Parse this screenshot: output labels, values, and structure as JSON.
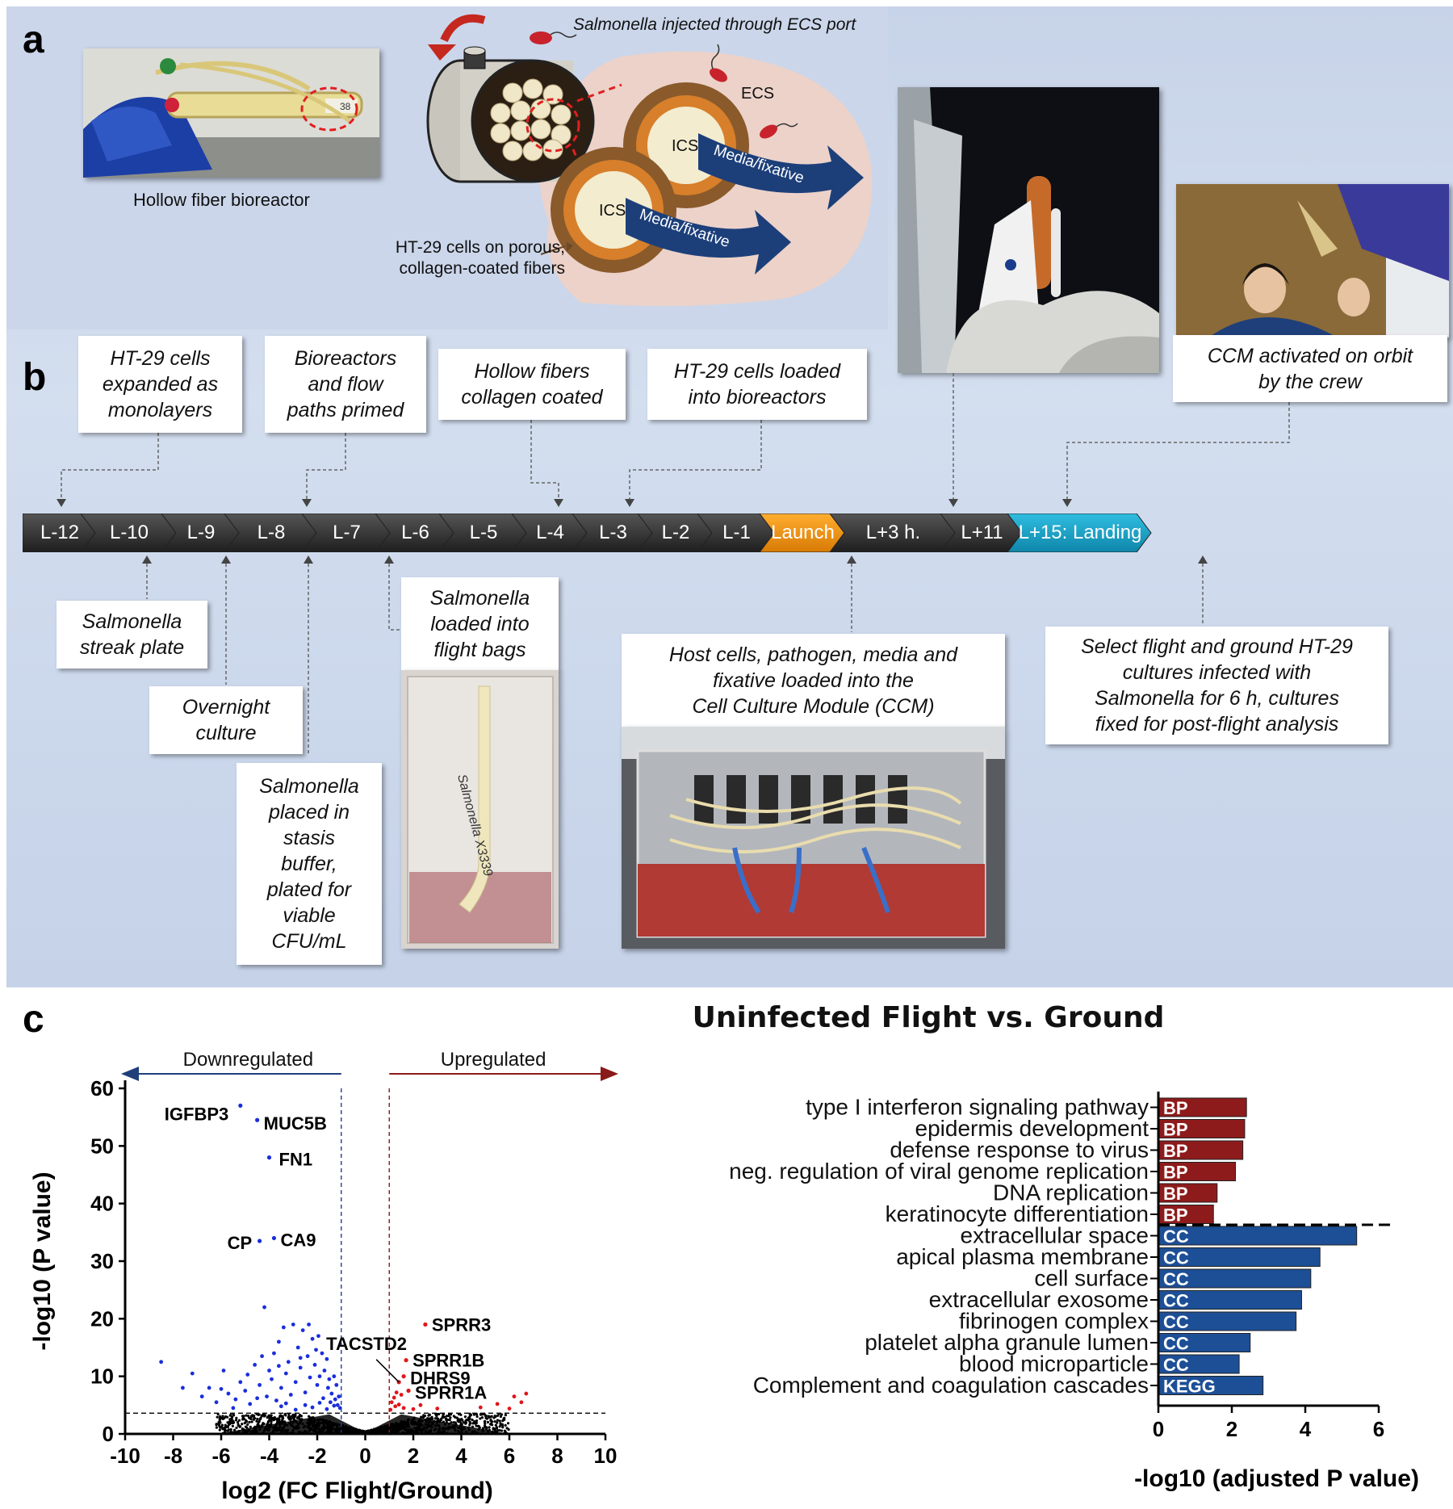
{
  "panels": {
    "a": "a",
    "b": "b",
    "c": "c"
  },
  "panel_a": {
    "bioreactor_label": "Hollow fiber bioreactor",
    "injection_label": "Salmonella injected through ECS port",
    "ecs": "ECS",
    "ics1": "ICS",
    "ics2": "ICS",
    "media1": "Media/fixative",
    "media2": "Media/fixative",
    "cells_label_1": "HT-29 cells on porous,",
    "cells_label_2": "collagen-coated fibers",
    "bioreactor_tag": "38"
  },
  "timeline": {
    "steps": [
      "L-12",
      "L-10",
      "L-9",
      "L-8",
      "L-7",
      "L-6",
      "L-5",
      "L-4",
      "L-3",
      "L-2",
      "L-1",
      "Launch",
      "L+3 h.",
      "L+11",
      "L+15: Landing"
    ],
    "colors": {
      "default": "#3a3a3a",
      "launch": "#f0960e",
      "landing": "#1aa3c8"
    }
  },
  "notes_top": {
    "n1": "HT-29 cells\nexpanded as\nmonolayers",
    "n2": "Bioreactors\nand flow\npaths primed",
    "n3": "Hollow fibers\ncollagen coated",
    "n4": "HT-29 cells loaded\ninto bioreactors",
    "n5": "CCM activated on orbit\nby the crew"
  },
  "notes_bottom": {
    "n1": "Salmonella\nstreak plate",
    "n2": "Overnight\nculture",
    "n3": "Salmonella\nplaced in\nstasis\nbuffer,\nplated for\nviable\nCFU/mL",
    "n4": "Salmonella\nloaded into\nflight bags",
    "n5": "Host cells, pathogen, media and\nfixative loaded into the\nCell Culture Module (CCM)",
    "n6": "Select flight and ground HT-29\ncultures infected with\nSalmonella for 6 h, cultures\nfixed for post-flight analysis"
  },
  "photo_text": {
    "bag_handwriting": "Salmonella X3339"
  },
  "panel_c_title": "Uninfected Flight vs. Ground",
  "chart_data": [
    {
      "type": "scatter",
      "title": "",
      "xlabel": "log2 (FC Flight/Ground)",
      "ylabel": "-log10 (P value)",
      "xlim": [
        -10,
        10
      ],
      "ylim": [
        0,
        60
      ],
      "xticks": [
        -10,
        -8,
        -6,
        -4,
        -2,
        0,
        2,
        4,
        6,
        8,
        10
      ],
      "yticks": [
        0,
        10,
        20,
        30,
        40,
        50,
        60
      ],
      "thresholds": {
        "fc_low": -1,
        "fc_high": 1,
        "p": 3.6
      },
      "direction_labels": {
        "down": "Downregulated",
        "up": "Upregulated"
      },
      "colors": {
        "down": "#1a2edb",
        "up": "#e0161b",
        "ns": "#000000",
        "down_arrow": "#1f3f7a",
        "up_arrow": "#8a1a1a"
      },
      "labeled_points": [
        {
          "name": "IGFBP3",
          "x": -5.2,
          "y": 57
        },
        {
          "name": "MUC5B",
          "x": -4.5,
          "y": 54.5
        },
        {
          "name": "FN1",
          "x": -4.0,
          "y": 48
        },
        {
          "name": "CP",
          "x": -4.4,
          "y": 33.5
        },
        {
          "name": "CA9",
          "x": -3.8,
          "y": 34
        },
        {
          "name": "SPRR3",
          "x": 2.5,
          "y": 19
        },
        {
          "name": "TACSTD2",
          "x": 1.4,
          "y": 9
        },
        {
          "name": "SPRR1B",
          "x": 1.7,
          "y": 12.8
        },
        {
          "name": "DHRS9",
          "x": 1.6,
          "y": 10
        },
        {
          "name": "SPRR1A",
          "x": 1.8,
          "y": 7.5
        }
      ],
      "sig_down_points": [
        [
          -8.5,
          12.5
        ],
        [
          -7.6,
          8
        ],
        [
          -7.2,
          10.5
        ],
        [
          -6.8,
          6.5
        ],
        [
          -6.5,
          8
        ],
        [
          -6.2,
          5.5
        ],
        [
          -5.9,
          11
        ],
        [
          -5.7,
          7
        ],
        [
          -5.4,
          6
        ],
        [
          -5.2,
          9
        ],
        [
          -5.0,
          7.5
        ],
        [
          -4.8,
          5.2
        ],
        [
          -4.6,
          12
        ],
        [
          -4.4,
          8.5
        ],
        [
          -4.2,
          22
        ],
        [
          -4.1,
          6.5
        ],
        [
          -4.0,
          11
        ],
        [
          -3.9,
          9.5
        ],
        [
          -3.8,
          14
        ],
        [
          -3.7,
          5.8
        ],
        [
          -3.6,
          16
        ],
        [
          -3.5,
          8
        ],
        [
          -3.4,
          18.5
        ],
        [
          -3.3,
          10.5
        ],
        [
          -3.2,
          12.5
        ],
        [
          -3.1,
          6.8
        ],
        [
          -3.0,
          19
        ],
        [
          -2.9,
          9
        ],
        [
          -2.8,
          15
        ],
        [
          -2.7,
          11.5
        ],
        [
          -2.6,
          18
        ],
        [
          -2.5,
          7.2
        ],
        [
          -2.4,
          13.5
        ],
        [
          -2.35,
          19
        ],
        [
          -2.3,
          9.8
        ],
        [
          -2.2,
          16.5
        ],
        [
          -2.1,
          12
        ],
        [
          -2.0,
          8.5
        ],
        [
          -1.95,
          17
        ],
        [
          -1.9,
          10
        ],
        [
          -1.8,
          14
        ],
        [
          -1.75,
          6.2
        ],
        [
          -1.7,
          11
        ],
        [
          -1.6,
          13
        ],
        [
          -1.55,
          8
        ],
        [
          -1.5,
          9.5
        ],
        [
          -1.45,
          5.5
        ],
        [
          -1.4,
          7
        ],
        [
          -1.3,
          10
        ],
        [
          -1.25,
          6
        ],
        [
          -1.2,
          8.5
        ],
        [
          -1.15,
          5
        ],
        [
          -1.1,
          6.5
        ],
        [
          -1.05,
          4.5
        ],
        [
          -2.5,
          5
        ],
        [
          -3.5,
          4.8
        ],
        [
          -4.5,
          6.2
        ],
        [
          -5.5,
          4.5
        ],
        [
          -6.0,
          7.8
        ],
        [
          -3.3,
          5.3
        ],
        [
          -2.9,
          4.2
        ],
        [
          -2.2,
          4.6
        ],
        [
          -1.9,
          5.4
        ],
        [
          -1.6,
          4.3
        ],
        [
          -1.3,
          4.9
        ],
        [
          -4.9,
          10.3
        ],
        [
          -4.3,
          13.5
        ],
        [
          -3.6,
          11.8
        ],
        [
          -2.7,
          13.2
        ],
        [
          -2.05,
          14.6
        ]
      ],
      "sig_up_points": [
        [
          1.05,
          4.2
        ],
        [
          1.1,
          5.5
        ],
        [
          1.2,
          6.3
        ],
        [
          1.25,
          4.8
        ],
        [
          1.3,
          7.2
        ],
        [
          1.4,
          5.1
        ],
        [
          1.5,
          6.8
        ],
        [
          1.6,
          4.5
        ],
        [
          2.0,
          4.3
        ],
        [
          2.3,
          5.0
        ],
        [
          3.0,
          4.4
        ],
        [
          4.8,
          4.6
        ],
        [
          5.5,
          5.2
        ],
        [
          6.0,
          4.4
        ],
        [
          6.2,
          6.5
        ],
        [
          6.5,
          5.5
        ],
        [
          6.7,
          7.0
        ],
        [
          1.8,
          7.5
        ],
        [
          1.6,
          10
        ],
        [
          1.7,
          12.8
        ],
        [
          2.5,
          19
        ],
        [
          1.4,
          9
        ]
      ],
      "ns_band": {
        "x_min": -6.2,
        "x_max": 6.0,
        "y_max": 3.5
      }
    },
    {
      "type": "bar",
      "orientation": "horizontal",
      "title": "",
      "xlabel": "-log10 (adjusted P value)",
      "xlim": [
        0,
        6
      ],
      "xticks": [
        0,
        2,
        4,
        6
      ],
      "categories": [
        "type I interferon signaling pathway",
        "epidermis development",
        "defense response to virus",
        "neg. regulation of viral genome replication",
        "DNA replication",
        "keratinocyte differentiation",
        "extracellular space",
        "apical plasma membrane",
        "cell surface",
        "extracellular exosome",
        "fibrinogen complex",
        "platelet alpha granule lumen",
        "blood microparticle",
        "Complement and coagulation cascades"
      ],
      "values": [
        2.4,
        2.35,
        2.3,
        2.1,
        1.6,
        1.5,
        5.4,
        4.4,
        4.15,
        3.9,
        3.75,
        2.5,
        2.2,
        2.85
      ],
      "group_tags": [
        "BP",
        "BP",
        "BP",
        "BP",
        "BP",
        "BP",
        "CC",
        "CC",
        "CC",
        "CC",
        "CC",
        "CC",
        "CC",
        "KEGG"
      ],
      "colors": {
        "BP": "#8e1b1b",
        "CC": "#1d4f96",
        "KEGG": "#1d4f96"
      },
      "separator_after_index": 5
    }
  ]
}
